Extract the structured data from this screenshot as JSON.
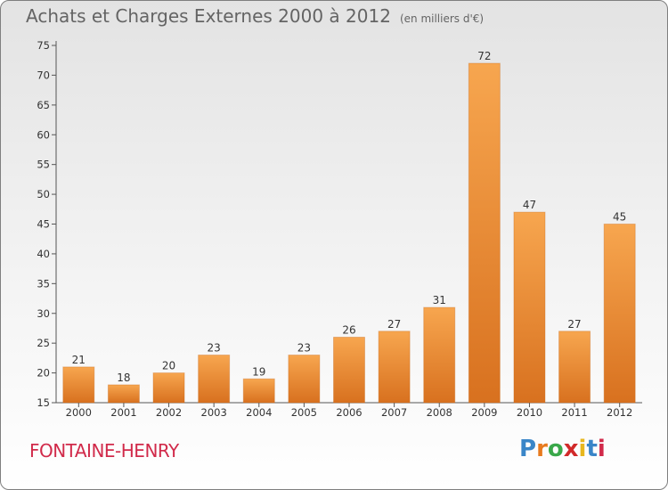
{
  "title": "Achats et Charges Externes 2000 à 2012",
  "unit": "(en milliers d'€)",
  "location": "FONTAINE-HENRY",
  "logo": {
    "letters": [
      "P",
      "r",
      "o",
      "x",
      "i",
      "t",
      "i"
    ],
    "colors": [
      "#3a86c8",
      "#e87a1e",
      "#3aa84a",
      "#d12a2a",
      "#e8b71e",
      "#3a86c8",
      "#d12a4a"
    ]
  },
  "colors": {
    "bar_light": "#f7a64f",
    "bar_dark": "#d8711f",
    "axis": "#555555",
    "grid": "#bbbbbb"
  },
  "chart_data": {
    "type": "bar",
    "categories": [
      "2000",
      "2001",
      "2002",
      "2003",
      "2004",
      "2005",
      "2006",
      "2007",
      "2008",
      "2009",
      "2010",
      "2011",
      "2012"
    ],
    "values": [
      21,
      18,
      20,
      23,
      19,
      23,
      26,
      27,
      31,
      72,
      47,
      27,
      45
    ],
    "ylim": [
      15,
      75
    ],
    "yticks": [
      15,
      20,
      25,
      30,
      35,
      40,
      45,
      50,
      55,
      60,
      65,
      70,
      75
    ],
    "grid": false,
    "data_labels": true
  }
}
